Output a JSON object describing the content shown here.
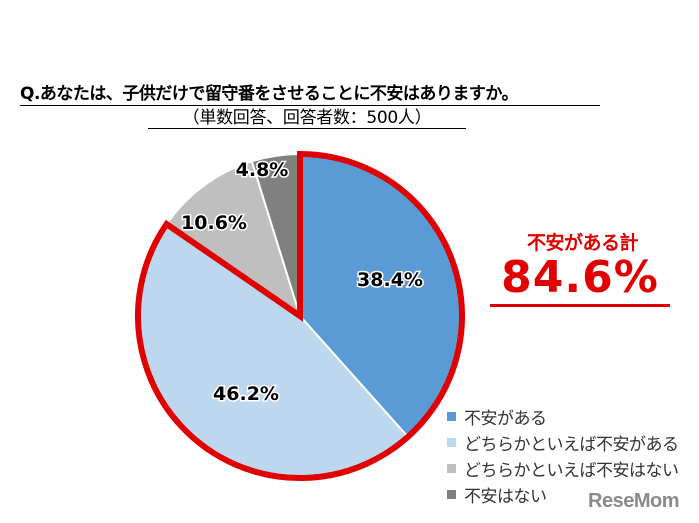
{
  "header": {
    "title": "Q.あなたは、子供だけで留守番をさせることに不安はありますか。",
    "subtitle": "（単数回答、回答者数：500人）"
  },
  "summary": {
    "label": "不安がある計",
    "value": "84.6%",
    "color": "#e00000"
  },
  "legend": [
    {
      "label": "不安がある",
      "color": "#5b9bd5"
    },
    {
      "label": "どちらかといえば不安がある",
      "color": "#bdd7ee"
    },
    {
      "label": "どちらかといえば不安はない",
      "color": "#bfbfbf"
    },
    {
      "label": "不安はない",
      "color": "#808080"
    }
  ],
  "watermark": "ReseMom",
  "chart_data": {
    "type": "pie",
    "title": "Q.あなたは、子供だけで留守番をさせることに不安はありますか。",
    "subtitle": "（単数回答、回答者数：500人）",
    "categories": [
      "不安がある",
      "どちらかといえば不安がある",
      "どちらかといえば不安はない",
      "不安はない"
    ],
    "values": [
      38.4,
      46.2,
      10.6,
      4.8
    ],
    "labels": [
      "38.4%",
      "46.2%",
      "10.6%",
      "4.8%"
    ],
    "colors": [
      "#5b9bd5",
      "#bdd7ee",
      "#bfbfbf",
      "#808080"
    ],
    "start_angle": "12 o'clock, clockwise",
    "annotations": [
      {
        "text": "不安がある計",
        "value": "84.6%",
        "highlight": "red outline around first two slices"
      }
    ],
    "legend_position": "bottom-right",
    "n": 500
  }
}
